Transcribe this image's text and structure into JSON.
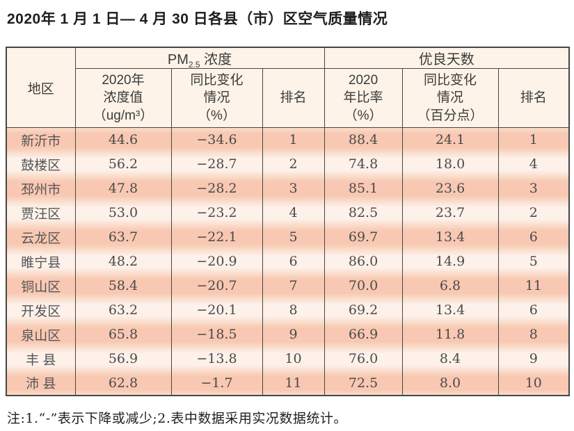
{
  "title": "2020年 1 月 1 日— 4 月 30 日各县（市）区空气质量情况",
  "table": {
    "region_header": "地区",
    "group1": {
      "prefix": "PM",
      "sub": "2.5",
      "suffix": " 浓度"
    },
    "group2": "优良天数",
    "sub_headers": [
      "2020年\n浓度值\n（ug/m³）",
      "同比变化\n情况\n（%）",
      "排名",
      "2020\n年比率\n（%）",
      "同比变化\n情况\n（百分点）",
      "排名"
    ],
    "rows": [
      {
        "region": "新沂市",
        "values": [
          "44.6",
          "−34.6",
          "1",
          "88.4",
          "24.1",
          "1"
        ]
      },
      {
        "region": "鼓楼区",
        "values": [
          "56.2",
          "−28.7",
          "2",
          "74.8",
          "18.0",
          "4"
        ]
      },
      {
        "region": "邳州市",
        "values": [
          "47.8",
          "−28.2",
          "3",
          "85.1",
          "23.6",
          "3"
        ]
      },
      {
        "region": "贾汪区",
        "values": [
          "53.0",
          "−23.2",
          "4",
          "82.5",
          "23.7",
          "2"
        ]
      },
      {
        "region": "云龙区",
        "values": [
          "63.7",
          "−22.1",
          "5",
          "69.7",
          "13.4",
          "6"
        ]
      },
      {
        "region": "睢宁县",
        "values": [
          "48.2",
          "−20.9",
          "6",
          "86.0",
          "14.9",
          "5"
        ]
      },
      {
        "region": "铜山区",
        "values": [
          "58.4",
          "−20.7",
          "7",
          "70.0",
          "6.8",
          "11"
        ]
      },
      {
        "region": "开发区",
        "values": [
          "63.2",
          "−20.1",
          "8",
          "69.2",
          "13.4",
          "6"
        ]
      },
      {
        "region": "泉山区",
        "values": [
          "65.8",
          "−18.5",
          "9",
          "66.9",
          "11.8",
          "8"
        ]
      },
      {
        "region": "丰 县",
        "values": [
          "56.9",
          "−13.8",
          "10",
          "76.0",
          "8.4",
          "9"
        ]
      },
      {
        "region": "沛 县",
        "values": [
          "62.8",
          "−1.7",
          "11",
          "72.5",
          "8.0",
          "10"
        ]
      }
    ]
  },
  "footnote": "注:1.“-”表示下降或减少;2.表中数据采用实况数据统计。",
  "colors": {
    "row_odd": "#f8c8b2",
    "row_even": "#fdf1ea",
    "row_edge": "#fadcca",
    "header_bg": "#fdf3e8",
    "border": "#454545"
  }
}
